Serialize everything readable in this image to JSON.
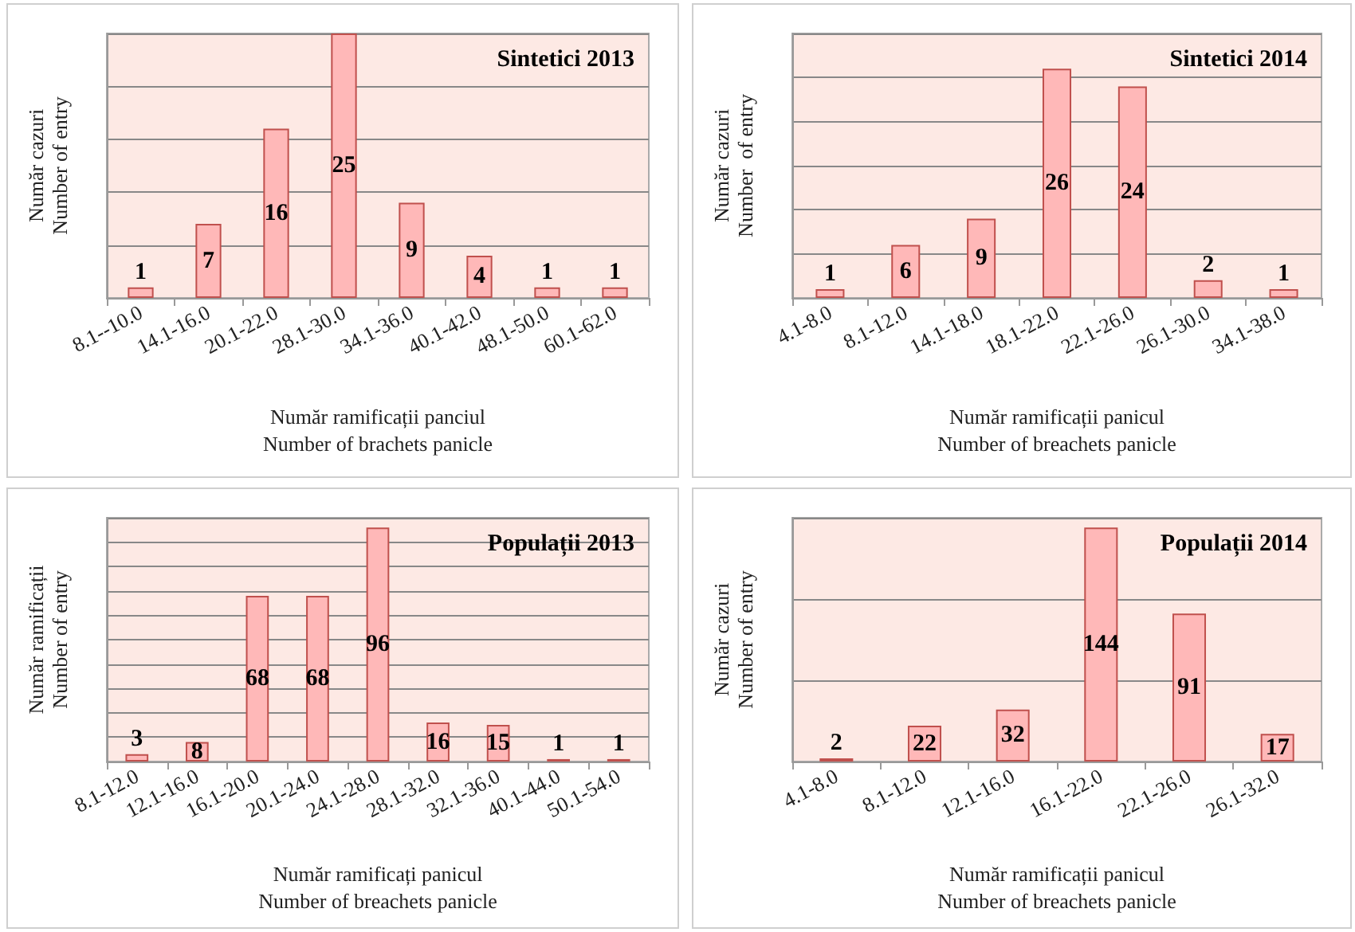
{
  "chart_data": [
    {
      "type": "bar",
      "title": "Sintetici 2013",
      "xlabel": "Număr ramificații panciul\nNumber of brachets panicle",
      "ylabel": "Număr cazuri\nNumber of entry",
      "categories": [
        "8.1--10.0",
        "14.1-16.0",
        "20.1-22.0",
        "28.1-30.0",
        "34.1-36.0",
        "40.1-42.0",
        "48.1-50.0",
        "60.1-62.0"
      ],
      "values": [
        1,
        7,
        16,
        25,
        9,
        4,
        1,
        1
      ],
      "color": "#ffb8b8",
      "ylim": [
        0,
        25
      ],
      "yticks": [
        {
          "value": 0,
          "label": null
        },
        {
          "value": 5,
          "label": null
        },
        {
          "value": 10,
          "label": null
        },
        {
          "value": 15,
          "label": null
        },
        {
          "value": 20,
          "label": null
        },
        {
          "value": 25,
          "label": null
        }
      ],
      "grid": "y",
      "tick_labels": "x",
      "data_labels": true
    },
    {
      "type": "bar",
      "title": "Sintetici 2014",
      "xlabel": "Număr ramificații panicul\nNumber of breachets panicle",
      "ylabel": "Număr cazuri\nNumber  of entry",
      "categories": [
        "4.1-8.0",
        "8.1-12.0",
        "14.1-18.0",
        "18.1-22.0",
        "22.1-26.0",
        "26.1-30.0",
        "34.1-38.0"
      ],
      "values": [
        1,
        6,
        9,
        26,
        24,
        2,
        1
      ],
      "color": "#ffb8b8",
      "ylim": [
        0,
        30
      ],
      "yticks": [
        {
          "value": 0,
          "label": null
        },
        {
          "value": 5,
          "label": null
        },
        {
          "value": 10,
          "label": null
        },
        {
          "value": 15,
          "label": null
        },
        {
          "value": 20,
          "label": null
        },
        {
          "value": 25,
          "label": null
        },
        {
          "value": 30,
          "label": null
        }
      ],
      "grid": "y",
      "tick_labels": "x",
      "data_labels": true
    },
    {
      "type": "bar",
      "title": "Populații 2013",
      "xlabel": "Număr ramificați panicul\nNumber of breachets panicle",
      "ylabel": "Număr ramificații\nNumber of entry",
      "categories": [
        "8.1-12.0",
        "12.1-16.0",
        "16.1-20.0",
        "20.1-24.0",
        "24.1-28.0",
        "28.1-32.0",
        "32.1-36.0",
        "40.1-44.0",
        "50.1-54.0"
      ],
      "values": [
        3,
        8,
        68,
        68,
        96,
        16,
        15,
        1,
        1
      ],
      "color": "#ffb8b8",
      "ylim": [
        0,
        100
      ],
      "yticks": [
        {
          "value": 0,
          "label": null
        },
        {
          "value": 10,
          "label": null
        },
        {
          "value": 20,
          "label": null
        },
        {
          "value": 30,
          "label": null
        },
        {
          "value": 40,
          "label": null
        },
        {
          "value": 50,
          "label": null
        },
        {
          "value": 60,
          "label": null
        },
        {
          "value": 70,
          "label": null
        },
        {
          "value": 80,
          "label": null
        },
        {
          "value": 90,
          "label": null
        },
        {
          "value": 100,
          "label": null
        }
      ],
      "grid": "y",
      "tick_labels": "x",
      "data_labels": true
    },
    {
      "type": "bar",
      "title": "Populații 2014",
      "xlabel": "Număr ramificații panicul\nNumber of breachets panicle",
      "ylabel": "Număr cazuri\nNumber of entry",
      "categories": [
        "4.1-8.0",
        "8.1-12.0",
        "12.1-16.0",
        "16.1-22.0",
        "22.1-26.0",
        "26.1-32.0"
      ],
      "values": [
        2,
        22,
        32,
        144,
        91,
        17
      ],
      "color": "#ffb8b8",
      "ylim": [
        0,
        150
      ],
      "yticks": [
        {
          "value": 0,
          "label": null
        },
        {
          "value": 50,
          "label": null
        },
        {
          "value": 100,
          "label": null
        },
        {
          "value": 150,
          "label": null
        }
      ],
      "grid": "y",
      "tick_labels": "x",
      "data_labels": true
    }
  ]
}
